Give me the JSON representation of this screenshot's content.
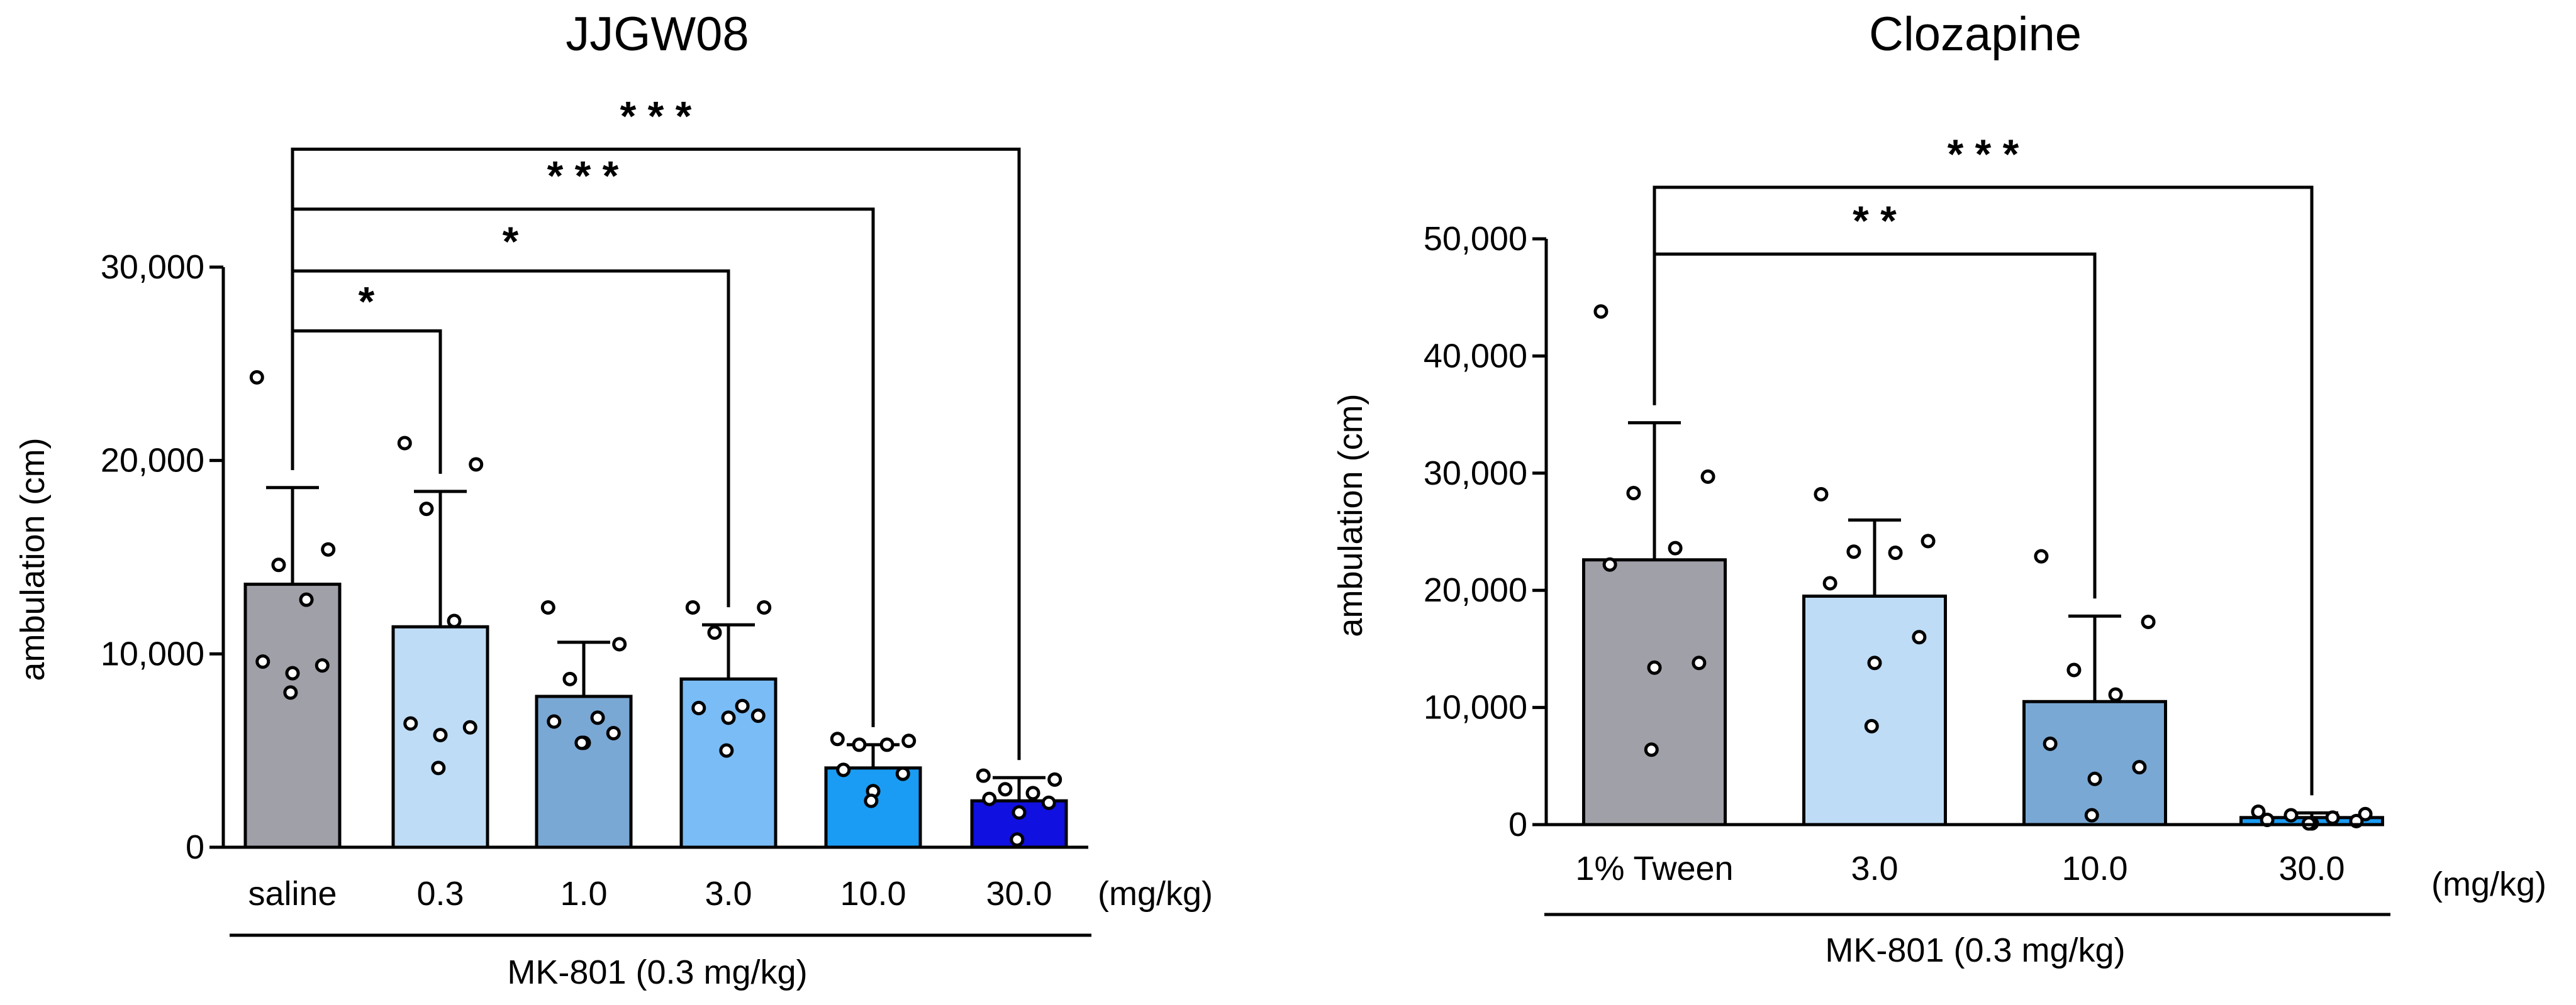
{
  "chart_data": [
    {
      "type": "bar",
      "title": "JJGW08",
      "ylabel": "ambulation (cm)",
      "xlabel": "MK-801 (0.3 mg/kg)",
      "unit_label": "(mg/kg)",
      "ylim": [
        0,
        30000
      ],
      "yticks": [
        0,
        10000,
        20000,
        30000
      ],
      "ytick_labels": [
        "0",
        "10,000",
        "20,000",
        "30,000"
      ],
      "categories": [
        "saline",
        "0.3",
        "1.0",
        "3.0",
        "10.0",
        "30.0"
      ],
      "values": [
        13600,
        11400,
        7800,
        8700,
        4100,
        2400
      ],
      "errors": [
        5000,
        7000,
        2800,
        2800,
        1200,
        1200
      ],
      "colors": [
        "#a0a0a8",
        "#bedcf6",
        "#7aa8d4",
        "#7abcf6",
        "#1a9cf4",
        "#1010e0"
      ],
      "points": [
        [
          24300,
          15400,
          14600,
          12800,
          9600,
          9400,
          9000,
          8000
        ],
        [
          20900,
          19800,
          17500,
          11700,
          6400,
          6200,
          5800,
          4100
        ],
        [
          12400,
          10500,
          8700,
          6700,
          6500,
          5900,
          5400,
          5400
        ],
        [
          12400,
          12400,
          11100,
          7300,
          7200,
          6800,
          6700,
          5000
        ],
        [
          5600,
          5500,
          5300,
          5300,
          4000,
          3800,
          2900,
          2400
        ],
        [
          3700,
          3500,
          3000,
          2800,
          2500,
          2300,
          1800,
          400
        ]
      ],
      "comparisons": [
        {
          "from": 0,
          "to": 1,
          "level": 26700,
          "label": "*"
        },
        {
          "from": 0,
          "to": 3,
          "level": 29800,
          "label": "*"
        },
        {
          "from": 0,
          "to": 4,
          "level": 33000,
          "label": "* * *"
        },
        {
          "from": 0,
          "to": 5,
          "level": 36100,
          "label": "* * *"
        }
      ]
    },
    {
      "type": "bar",
      "title": "Clozapine",
      "ylabel": "ambulation (cm)",
      "xlabel": "MK-801 (0.3 mg/kg)",
      "unit_label": "(mg/kg)",
      "ylim": [
        0,
        50000
      ],
      "yticks": [
        0,
        10000,
        20000,
        30000,
        40000,
        50000
      ],
      "ytick_labels": [
        "0",
        "10,000",
        "20,000",
        "30,000",
        "40,000",
        "50,000"
      ],
      "categories": [
        "1% Tween",
        "3.0",
        "10.0",
        "30.0"
      ],
      "values": [
        22600,
        19500,
        10500,
        600
      ],
      "errors": [
        11700,
        6500,
        7300,
        400
      ],
      "colors": [
        "#a0a0a8",
        "#bedcf6",
        "#7aa8d4",
        "#1a9cf4"
      ],
      "points": [
        [
          43800,
          29700,
          28300,
          23600,
          22200,
          13800,
          13400,
          6400
        ],
        [
          28200,
          24200,
          23300,
          23200,
          20600,
          16000,
          13800,
          8400
        ],
        [
          22900,
          17300,
          13200,
          11100,
          6900,
          4900,
          3900,
          800
        ],
        [
          1100,
          900,
          800,
          600,
          400,
          300,
          100,
          100
        ]
      ],
      "comparisons": [
        {
          "from": 0,
          "to": 2,
          "level": 48700,
          "label": "* *"
        },
        {
          "from": 0,
          "to": 3,
          "level": 54400,
          "label": "* * *"
        }
      ]
    }
  ]
}
